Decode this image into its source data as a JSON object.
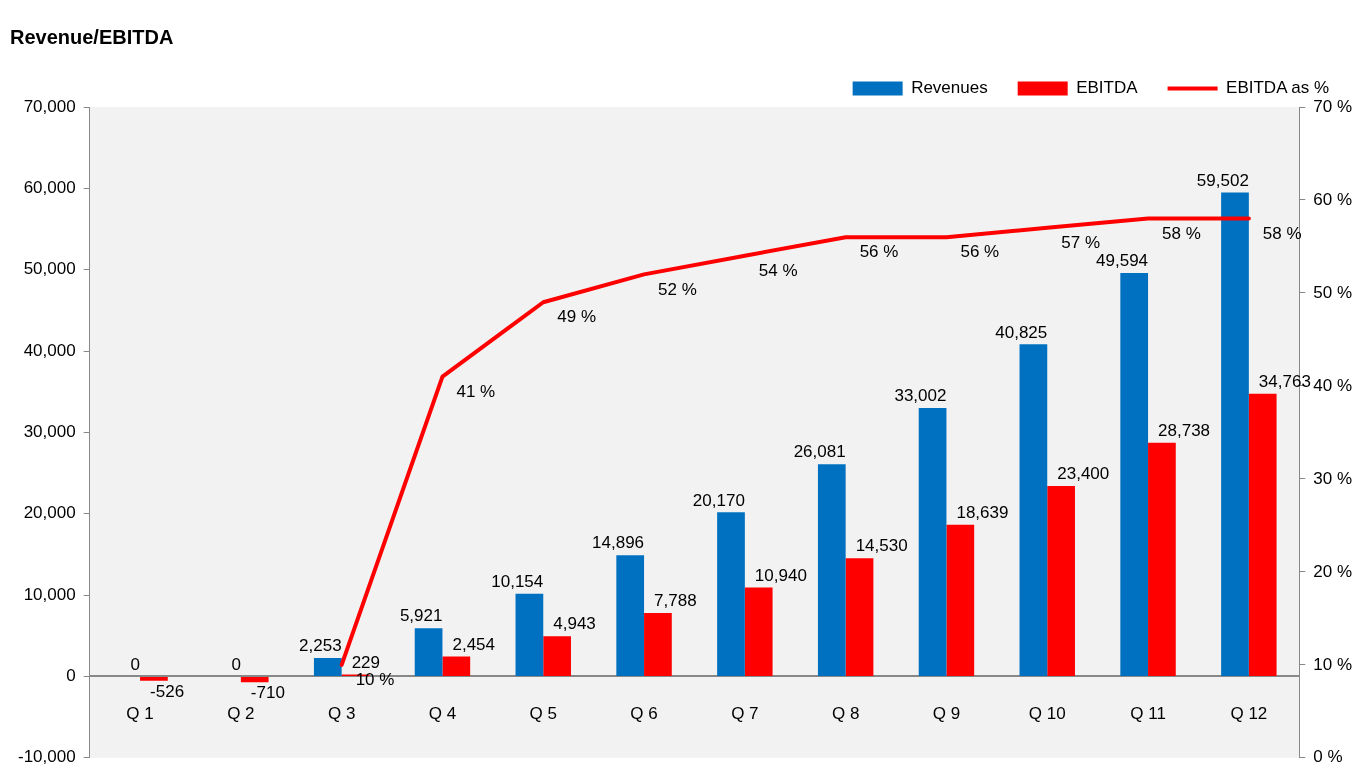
{
  "chart_data": {
    "type": "bar",
    "title": "Revenue/EBITDA",
    "categories": [
      "Q 1",
      "Q 2",
      "Q 3",
      "Q 4",
      "Q 5",
      "Q 6",
      "Q 7",
      "Q 8",
      "Q 9",
      "Q 10",
      "Q 11",
      "Q 12"
    ],
    "series": [
      {
        "name": "Revenues",
        "color": "#0070c0",
        "values": [
          0,
          0,
          2253,
          5921,
          10154,
          14896,
          20170,
          26081,
          33002,
          40825,
          49594,
          59502
        ],
        "value_labels": [
          "0",
          "0",
          "2,253",
          "5,921",
          "10,154",
          "14,896",
          "20,170",
          "26,081",
          "33,002",
          "40,825",
          "49,594",
          "59,502"
        ]
      },
      {
        "name": "EBITDA",
        "color": "#ff0000",
        "values": [
          -526,
          -710,
          229,
          2454,
          4943,
          7788,
          10940,
          14530,
          18639,
          23400,
          28738,
          34763
        ],
        "value_labels": [
          "-526",
          "-710",
          "229",
          "2,454",
          "4,943",
          "7,788",
          "10,940",
          "14,530",
          "18,639",
          "23,400",
          "28,738",
          "34,763"
        ]
      },
      {
        "name": "EBITDA as %",
        "type": "line",
        "axis": "y2",
        "color": "#ff0000",
        "values": [
          null,
          null,
          10,
          41,
          49,
          52,
          54,
          56,
          56,
          57,
          58,
          58
        ],
        "value_labels": [
          null,
          null,
          "10 %",
          "41 %",
          "49 %",
          "52 %",
          "54 %",
          "56 %",
          "56 %",
          "57 %",
          "58 %",
          "58 %"
        ]
      }
    ],
    "ylim": [
      -10000,
      70000
    ],
    "yticks": [
      {
        "value": -10000,
        "label": "-10,000"
      },
      0,
      {
        "value": 10000,
        "label": "10,000"
      },
      {
        "value": 20000,
        "label": "20,000"
      },
      {
        "value": 30000,
        "label": "30,000"
      },
      {
        "value": 40000,
        "label": "40,000"
      },
      {
        "value": 50000,
        "label": "50,000"
      },
      {
        "value": 60000,
        "label": "60,000"
      },
      {
        "value": 70000,
        "label": "70,000"
      }
    ],
    "y2lim": [
      0,
      70
    ],
    "y2ticks": [
      {
        "value": 0,
        "label": "0 %"
      },
      {
        "value": 10,
        "label": "10 %"
      },
      {
        "value": 20,
        "label": "20 %"
      },
      {
        "value": 30,
        "label": "30 %"
      },
      {
        "value": 40,
        "label": "40 %"
      },
      {
        "value": 50,
        "label": "50 %"
      },
      {
        "value": 60,
        "label": "60 %"
      },
      {
        "value": 70,
        "label": "70 %"
      }
    ],
    "grid": false,
    "legend": "top right",
    "marker": "none",
    "line_style": "solid"
  }
}
